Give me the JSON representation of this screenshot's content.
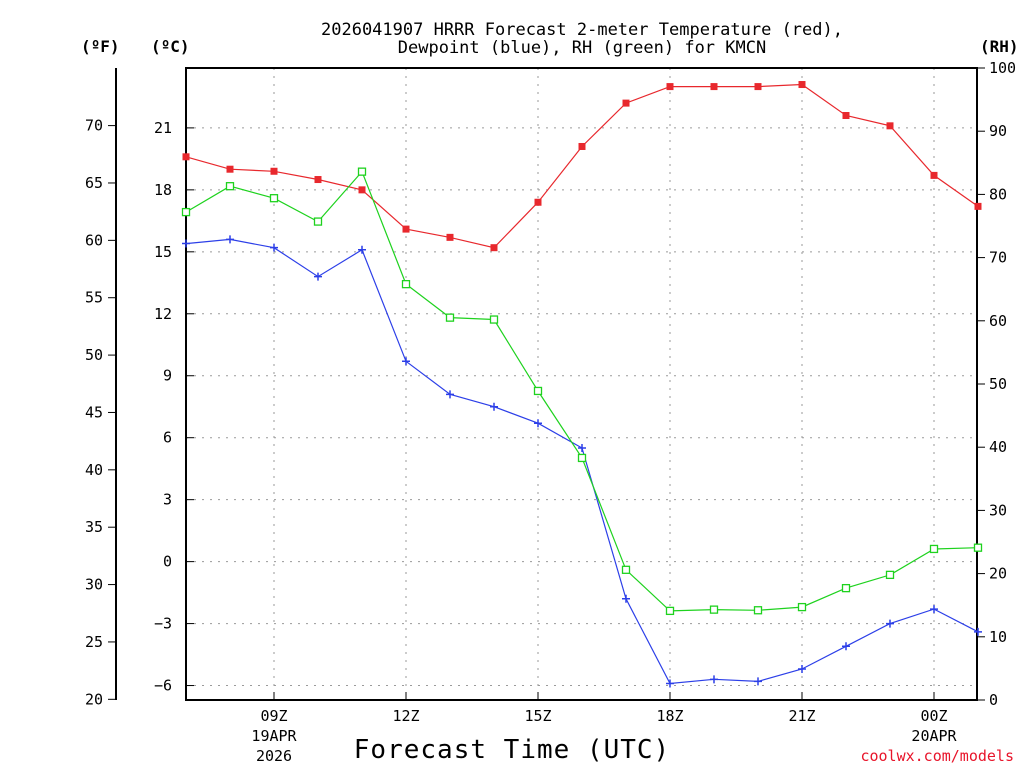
{
  "header": {
    "title_line1": "2026041907 HRRR Forecast 2-meter Temperature (red),",
    "title_line2": "Dewpoint (blue), RH (green) for KMCN",
    "unit_f": "(ºF)",
    "unit_c": "(ºC)",
    "unit_rh": "(RH)"
  },
  "footer": {
    "xlabel": "Forecast Time (UTC)",
    "credit": "coolwx.com/models"
  },
  "colors": {
    "temperature": "#e8282d",
    "dewpoint": "#2c3fe8",
    "rh": "#1ed21e",
    "grid": "#9a9a9a"
  },
  "chart_data": {
    "type": "line",
    "title": "2026041907 HRRR Forecast 2-meter Temperature (red), Dewpoint (blue), RH (green) for KMCN",
    "xlabel": "Forecast Time (UTC)",
    "x": [
      "07Z",
      "08Z",
      "09Z",
      "10Z",
      "11Z",
      "12Z",
      "13Z",
      "14Z",
      "15Z",
      "16Z",
      "17Z",
      "18Z",
      "19Z",
      "20Z",
      "21Z",
      "22Z",
      "23Z",
      "00Z",
      "01Z"
    ],
    "x_ticks": [
      {
        "label": "09Z",
        "index": 2,
        "sub1": "19APR",
        "sub2": "2026"
      },
      {
        "label": "12Z",
        "index": 5
      },
      {
        "label": "15Z",
        "index": 8
      },
      {
        "label": "18Z",
        "index": 11
      },
      {
        "label": "21Z",
        "index": 14
      },
      {
        "label": "00Z",
        "index": 17,
        "sub1": "20APR"
      }
    ],
    "y_celsius": {
      "ylim": [
        -6.7,
        23.9
      ],
      "ticks": [
        -6,
        -3,
        0,
        3,
        6,
        9,
        12,
        15,
        18,
        21
      ]
    },
    "y_fahrenheit": {
      "ticks": [
        20,
        25,
        30,
        35,
        40,
        45,
        50,
        55,
        60,
        65,
        70
      ]
    },
    "y_rh": {
      "ylim": [
        0,
        100
      ],
      "ticks": [
        0,
        10,
        20,
        30,
        40,
        50,
        60,
        70,
        80,
        90,
        100
      ]
    },
    "series": [
      {
        "name": "Temperature",
        "axis": "celsius",
        "marker": "filled-square",
        "values": [
          19.6,
          19.0,
          18.9,
          18.5,
          18.0,
          16.1,
          15.7,
          15.2,
          17.4,
          20.1,
          22.2,
          23.0,
          23.0,
          23.0,
          23.1,
          21.6,
          21.1,
          18.7,
          17.2
        ]
      },
      {
        "name": "Dewpoint",
        "axis": "celsius",
        "marker": "plus",
        "values": [
          15.4,
          15.6,
          15.2,
          13.8,
          15.1,
          9.7,
          8.1,
          7.5,
          6.7,
          5.5,
          -1.8,
          -5.9,
          -5.7,
          -5.8,
          -5.2,
          -4.1,
          -3.0,
          -2.3,
          -3.4
        ]
      },
      {
        "name": "RH",
        "axis": "rh",
        "marker": "open-square",
        "values": [
          77.2,
          81.3,
          79.4,
          75.7,
          83.6,
          65.8,
          60.5,
          60.2,
          48.9,
          38.3,
          20.6,
          14.1,
          14.3,
          14.2,
          14.7,
          17.7,
          19.8,
          23.9,
          24.1
        ]
      }
    ]
  }
}
